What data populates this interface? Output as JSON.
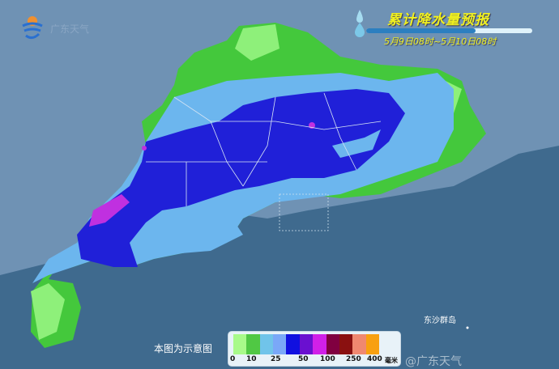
{
  "header": {
    "title": "累计降水量预报",
    "period": "5月9日08时~5月10日08时"
  },
  "logo": {
    "text": "广东天气"
  },
  "note": "本图为示意图",
  "place_labels": {
    "dongsha": "东沙群岛"
  },
  "watermark": "@广东天气",
  "legend": {
    "colors": [
      "#a8fa8a",
      "#50c844",
      "#70c4ea",
      "#7aa8f8",
      "#1010e0",
      "#6a10d0",
      "#d020e8",
      "#800040",
      "#8a1010",
      "#f08870",
      "#f8a010"
    ],
    "labels": [
      "0",
      "10",
      "25",
      "50",
      "100",
      "250",
      "400"
    ],
    "unit": "毫米"
  },
  "colors": {
    "sea": "#3f6a8e",
    "land": "#7a9cbc",
    "light_green": "#8ef07a",
    "green": "#44c83c",
    "light_blue": "#6cb6ee",
    "blue": "#2020d8",
    "magenta": "#c030e0"
  }
}
